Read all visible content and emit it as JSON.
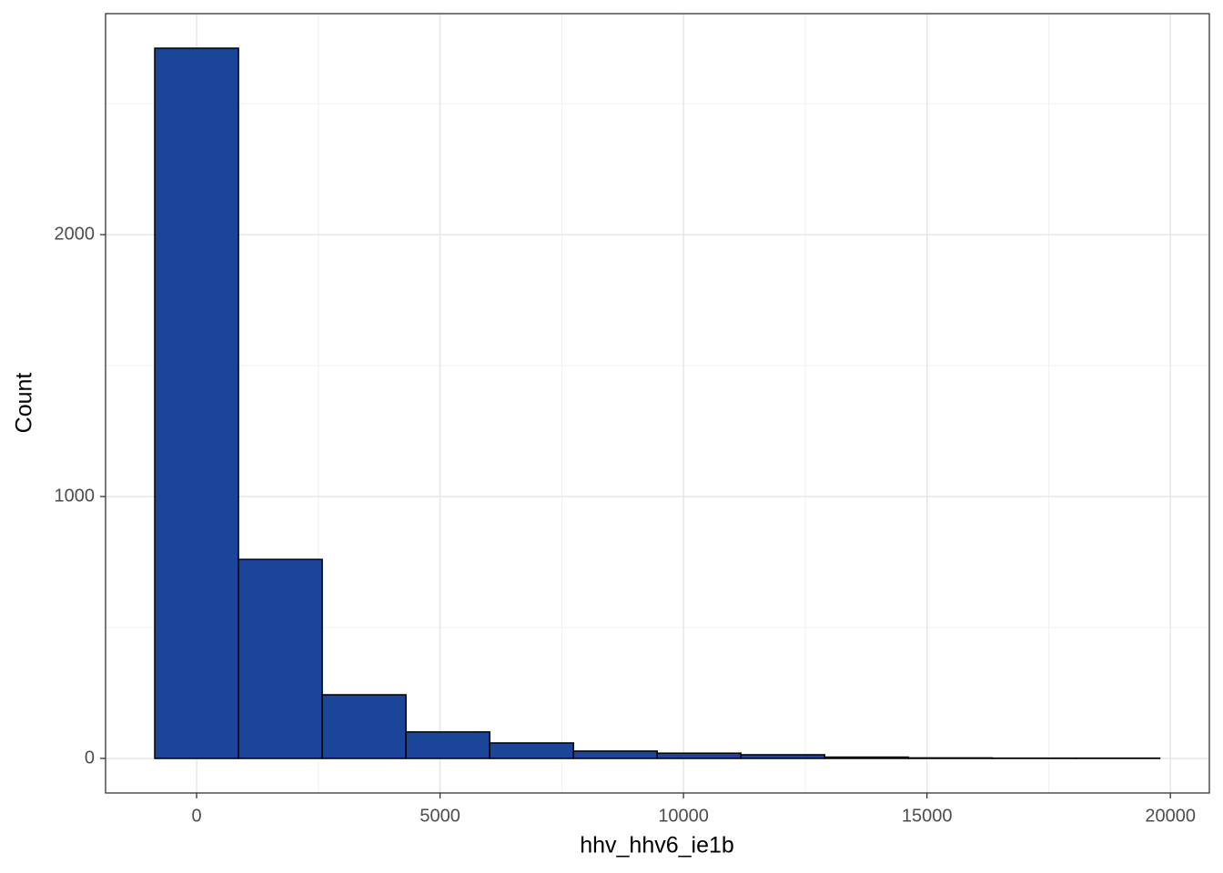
{
  "chart_data": {
    "type": "histogram",
    "xlabel": "hhv_hhv6_ie1b",
    "ylabel": "Count",
    "bins": [
      -860,
      860,
      2580,
      4300,
      6020,
      7740,
      9460,
      11180,
      12900,
      14620,
      16340,
      18060,
      19780
    ],
    "values": [
      2712,
      760,
      243,
      101,
      59,
      28,
      20,
      14,
      5,
      2,
      1,
      1
    ],
    "color": "#1a4599",
    "edgecolor": "#000000",
    "xlim": [
      -1870,
      20800
    ],
    "ylim": [
      -132,
      2844
    ],
    "xticks": [
      0,
      5000,
      10000,
      15000,
      20000
    ],
    "yticks": [
      0,
      1000,
      2000
    ],
    "x_minor_grid": [
      2500,
      7500,
      12500,
      17500
    ],
    "y_minor_grid": [
      500,
      1500,
      2500
    ],
    "grid": true
  }
}
